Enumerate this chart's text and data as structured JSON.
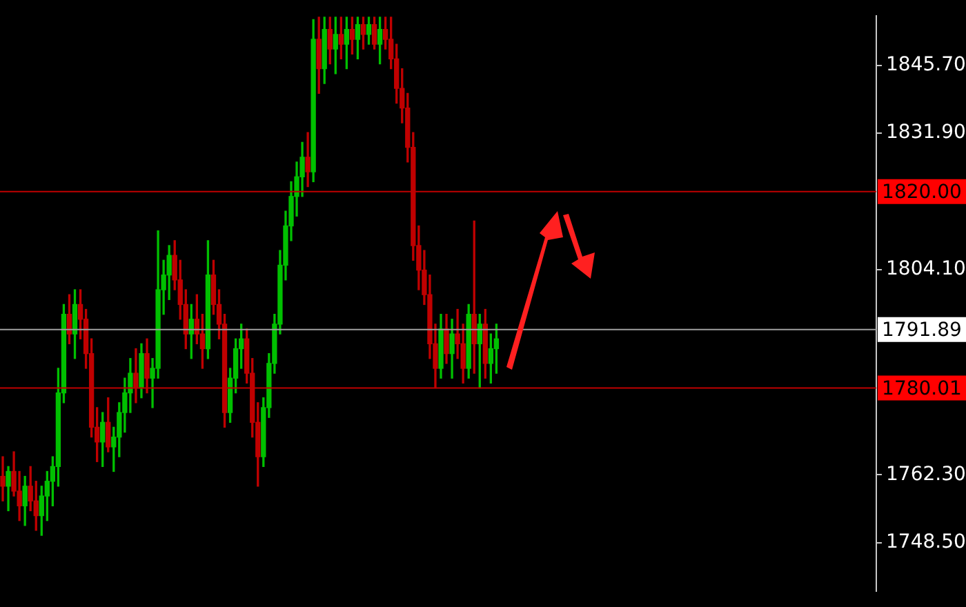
{
  "chart_data": {
    "type": "candlestick",
    "categories": [
      null,
      null,
      null,
      null,
      null,
      null,
      null,
      null,
      null,
      null,
      null,
      null,
      null,
      null,
      null,
      null,
      null,
      null,
      null,
      null,
      null,
      null,
      null,
      null,
      null,
      null,
      null,
      null,
      null,
      null,
      null,
      null,
      null,
      null,
      null,
      null,
      null,
      null,
      null,
      null,
      null,
      null,
      null,
      null,
      null,
      null,
      null,
      null,
      null,
      null,
      null,
      null,
      null,
      null,
      null,
      null,
      null,
      null,
      null,
      null,
      null,
      null,
      null,
      null,
      null,
      null,
      null,
      null,
      null,
      null,
      null,
      null,
      null,
      null,
      null,
      null,
      null,
      null,
      null,
      null,
      null,
      null,
      null,
      null,
      null,
      null,
      null,
      null,
      null,
      null,
      null,
      null,
      null,
      null,
      null,
      null,
      null,
      null,
      null,
      null,
      null,
      null,
      null,
      null,
      null,
      null,
      null,
      null,
      null,
      null,
      null,
      null,
      null,
      null,
      null,
      null,
      null,
      null,
      null,
      null,
      null,
      null,
      null,
      null,
      null,
      null,
      null,
      null,
      null,
      null,
      null,
      null,
      null,
      null,
      null,
      null,
      null,
      null,
      null,
      null,
      null,
      null,
      null,
      null,
      null,
      null,
      null,
      null,
      null,
      null,
      null,
      null,
      null,
      null,
      null,
      null,
      null,
      null
    ],
    "ohlc": [
      [
        1762,
        1766,
        1757,
        1760
      ],
      [
        1760,
        1764,
        1755,
        1763
      ],
      [
        1763,
        1767,
        1758,
        1759
      ],
      [
        1759,
        1763,
        1753,
        1756
      ],
      [
        1756,
        1762,
        1752,
        1760
      ],
      [
        1760,
        1764,
        1755,
        1757
      ],
      [
        1757,
        1761,
        1751,
        1754
      ],
      [
        1754,
        1760,
        1750,
        1758
      ],
      [
        1758,
        1763,
        1753,
        1761
      ],
      [
        1761,
        1766,
        1756,
        1764
      ],
      [
        1764,
        1784,
        1760,
        1779
      ],
      [
        1779,
        1797,
        1777,
        1795
      ],
      [
        1795,
        1799,
        1789,
        1791
      ],
      [
        1791,
        1800,
        1786,
        1797
      ],
      [
        1797,
        1800,
        1790,
        1794
      ],
      [
        1794,
        1796,
        1784,
        1787
      ],
      [
        1787,
        1790,
        1770,
        1772
      ],
      [
        1772,
        1776,
        1765,
        1769
      ],
      [
        1769,
        1775,
        1764,
        1773
      ],
      [
        1773,
        1778,
        1767,
        1768
      ],
      [
        1768,
        1772,
        1763,
        1770
      ],
      [
        1770,
        1777,
        1766,
        1775
      ],
      [
        1775,
        1782,
        1771,
        1779
      ],
      [
        1779,
        1786,
        1775,
        1783
      ],
      [
        1783,
        1788,
        1777,
        1780
      ],
      [
        1780,
        1789,
        1778,
        1787
      ],
      [
        1787,
        1790,
        1779,
        1782
      ],
      [
        1782,
        1786,
        1776,
        1784
      ],
      [
        1784,
        1812,
        1782,
        1800
      ],
      [
        1800,
        1806,
        1795,
        1803
      ],
      [
        1803,
        1809,
        1798,
        1807
      ],
      [
        1807,
        1810,
        1800,
        1802
      ],
      [
        1802,
        1806,
        1794,
        1797
      ],
      [
        1797,
        1800,
        1788,
        1791
      ],
      [
        1791,
        1797,
        1786,
        1794
      ],
      [
        1794,
        1799,
        1789,
        1791
      ],
      [
        1791,
        1795,
        1784,
        1788
      ],
      [
        1788,
        1810,
        1786,
        1803
      ],
      [
        1803,
        1806,
        1795,
        1797
      ],
      [
        1797,
        1800,
        1790,
        1793
      ],
      [
        1793,
        1795,
        1772,
        1775
      ],
      [
        1775,
        1784,
        1773,
        1782
      ],
      [
        1782,
        1790,
        1779,
        1788
      ],
      [
        1788,
        1793,
        1784,
        1790
      ],
      [
        1790,
        1792,
        1781,
        1783
      ],
      [
        1783,
        1786,
        1770,
        1773
      ],
      [
        1773,
        1777,
        1760,
        1766
      ],
      [
        1766,
        1778,
        1764,
        1776
      ],
      [
        1776,
        1787,
        1774,
        1785
      ],
      [
        1785,
        1795,
        1783,
        1793
      ],
      [
        1793,
        1808,
        1791,
        1805
      ],
      [
        1805,
        1816,
        1802,
        1813
      ],
      [
        1813,
        1822,
        1810,
        1819
      ],
      [
        1819,
        1826,
        1815,
        1823
      ],
      [
        1823,
        1830,
        1819,
        1827
      ],
      [
        1827,
        1832,
        1821,
        1824
      ],
      [
        1824,
        1855,
        1822,
        1851
      ],
      [
        1851,
        1855.5,
        1840,
        1845
      ],
      [
        1845,
        1855.5,
        1842,
        1853
      ],
      [
        1853,
        1855.5,
        1846,
        1849
      ],
      [
        1849,
        1855.5,
        1844,
        1852
      ],
      [
        1852,
        1855.5,
        1847,
        1850
      ],
      [
        1850,
        1855.5,
        1845,
        1853
      ],
      [
        1853,
        1855.5,
        1848,
        1851
      ],
      [
        1851,
        1855.5,
        1847,
        1854
      ],
      [
        1854,
        1855.5,
        1849,
        1852
      ],
      [
        1852,
        1855.5,
        1850,
        1854
      ],
      [
        1854,
        1855.5,
        1849,
        1850
      ],
      [
        1850,
        1855.5,
        1846,
        1853
      ],
      [
        1853,
        1855.5,
        1849,
        1851
      ],
      [
        1851,
        1855.5,
        1845,
        1847
      ],
      [
        1847,
        1850,
        1838,
        1841
      ],
      [
        1841,
        1845,
        1834,
        1837
      ],
      [
        1837,
        1840,
        1826,
        1829
      ],
      [
        1829,
        1832,
        1806,
        1809
      ],
      [
        1809,
        1813,
        1800,
        1804
      ],
      [
        1804,
        1808,
        1797,
        1799
      ],
      [
        1799,
        1803,
        1786,
        1789
      ],
      [
        1789,
        1793,
        1780,
        1784
      ],
      [
        1784,
        1795,
        1782,
        1792
      ],
      [
        1792,
        1795,
        1785,
        1787
      ],
      [
        1787,
        1794,
        1782,
        1791
      ],
      [
        1791,
        1796,
        1786,
        1789
      ],
      [
        1789,
        1793,
        1781,
        1784
      ],
      [
        1784,
        1797,
        1782,
        1795
      ],
      [
        1795,
        1814,
        1783,
        1789
      ],
      [
        1789,
        1795,
        1780,
        1793
      ],
      [
        1793,
        1796,
        1782,
        1785
      ],
      [
        1785,
        1791,
        1781,
        1788
      ],
      [
        1788,
        1793,
        1783,
        1790
      ],
      null,
      null,
      null,
      null,
      null,
      null,
      null,
      null,
      null,
      null,
      null,
      null,
      null,
      null,
      null,
      null,
      null,
      null,
      null,
      null,
      null,
      null,
      null,
      null,
      null,
      null,
      null,
      null,
      null,
      null,
      null,
      null,
      null,
      null,
      null,
      null,
      null,
      null,
      null,
      null,
      null,
      null,
      null,
      null,
      null,
      null,
      null,
      null,
      null,
      null,
      null,
      null,
      null,
      null,
      null,
      null,
      null,
      null,
      null,
      null,
      null,
      null,
      null,
      null,
      null,
      null,
      null,
      null
    ],
    "colors": [
      "#c00000",
      "#00c000",
      "#c00000",
      "#c00000",
      "#00c000",
      "#c00000",
      "#c00000",
      "#00c000",
      "#00c000",
      "#00c000",
      "#00c000",
      "#00c000",
      "#c00000",
      "#00c000",
      "#c00000",
      "#c00000",
      "#c00000",
      "#c00000",
      "#00c000",
      "#c00000",
      "#00c000",
      "#00c000",
      "#00c000",
      "#00c000",
      "#c00000",
      "#00c000",
      "#c00000",
      "#00c000",
      "#00c000",
      "#00c000",
      "#00c000",
      "#c00000",
      "#c00000",
      "#c00000",
      "#00c000",
      "#c00000",
      "#c00000",
      "#00c000",
      "#c00000",
      "#c00000",
      "#c00000",
      "#00c000",
      "#00c000",
      "#00c000",
      "#c00000",
      "#c00000",
      "#c00000",
      "#00c000",
      "#00c000",
      "#00c000",
      "#00c000",
      "#00c000",
      "#00c000",
      "#00c000",
      "#00c000",
      "#c00000",
      "#00c000",
      "#c00000",
      "#00c000",
      "#c00000",
      "#00c000",
      "#c00000",
      "#00c000",
      "#c00000",
      "#00c000",
      "#c00000",
      "#00c000",
      "#c00000",
      "#00c000",
      "#c00000",
      "#c00000",
      "#c00000",
      "#c00000",
      "#c00000",
      "#c00000",
      "#c00000",
      "#c00000",
      "#c00000",
      "#c00000",
      "#00c000",
      "#c00000",
      "#00c000",
      "#c00000",
      "#c00000",
      "#00c000",
      "#c00000",
      "#00c000",
      "#c00000",
      "#00c000",
      "#00c000",
      null,
      null,
      null,
      null,
      null,
      null,
      null,
      null,
      null,
      null,
      null,
      null,
      null,
      null,
      null,
      null,
      null,
      null,
      null,
      null,
      null,
      null,
      null,
      null,
      null,
      null,
      null,
      null,
      null,
      null,
      null,
      null,
      null,
      null,
      null,
      null,
      null,
      null,
      null,
      null,
      null,
      null,
      null,
      null,
      null,
      null,
      null,
      null,
      null,
      null,
      null,
      null,
      null,
      null,
      null,
      null,
      null,
      null,
      null,
      null,
      null,
      null,
      null,
      null,
      null,
      null,
      null,
      null
    ],
    "ylim": [
      1738.6,
      1855.8
    ],
    "yticks": [
      {
        "value": 1845.7,
        "label": "1845.70"
      },
      {
        "value": 1831.9,
        "label": "1831.90"
      },
      {
        "value": 1804.1,
        "label": "1804.10"
      },
      {
        "value": 1762.3,
        "label": "1762.30"
      },
      {
        "value": 1748.5,
        "label": "1748.50"
      }
    ],
    "ref_lines": [
      {
        "axis": "y",
        "value": 1820.0,
        "label": "1820.00",
        "color": "#c00000"
      },
      {
        "axis": "y",
        "value": 1791.89,
        "label": "1791.89",
        "color": "#a0a0a0"
      },
      {
        "axis": "y",
        "value": 1780.01,
        "label": "1780.01",
        "color": "#c00000"
      }
    ],
    "tick_labels": "y",
    "grid": false,
    "legend": false
  }
}
